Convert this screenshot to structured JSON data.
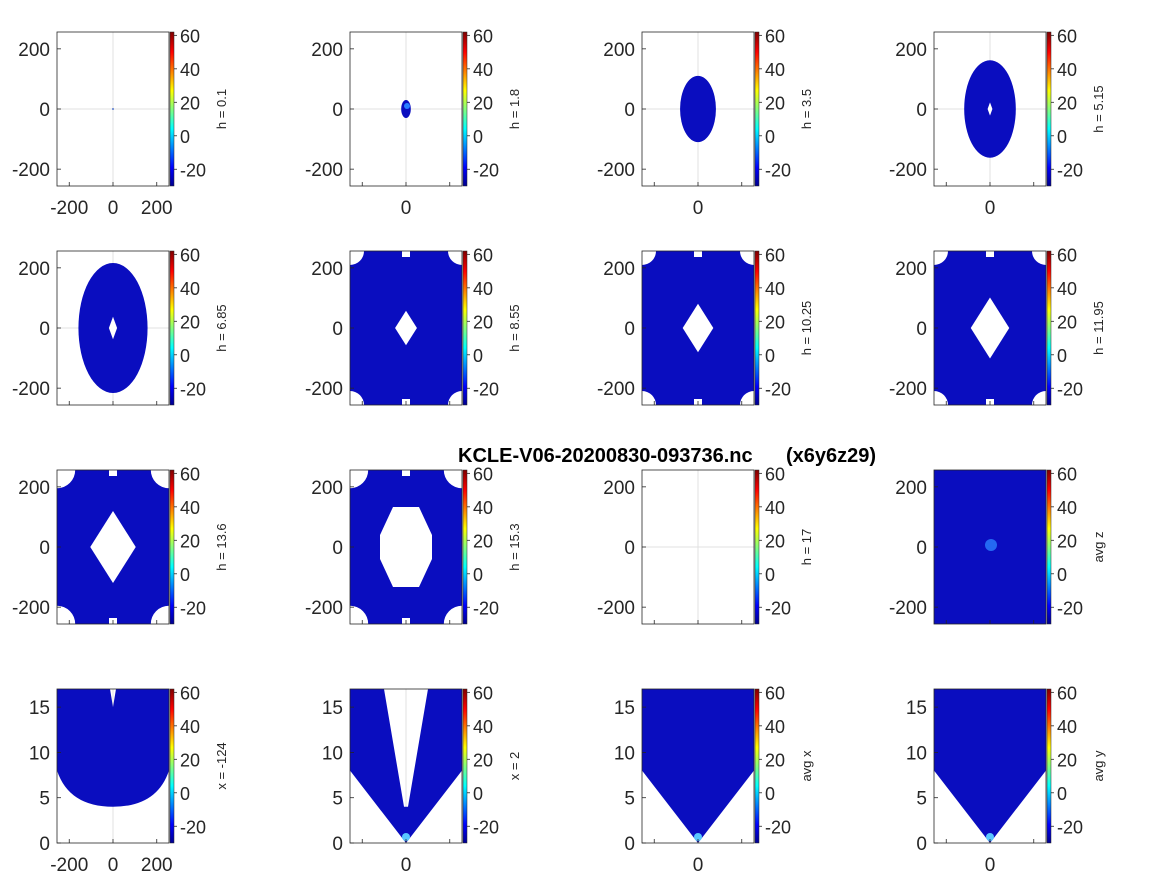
{
  "figure_title": "KCLE-V06-20200830-093736.nc      (x6y6z29)",
  "colors": {
    "field": "#0a0dbf",
    "field_light": "#2a7fff",
    "axis": "#262626",
    "grid": "#e0e0e0"
  },
  "colorbar": {
    "ticks": [
      "60",
      "40",
      "20",
      "0",
      "-20"
    ],
    "tick_values": [
      60,
      40,
      20,
      0,
      -20
    ],
    "range": [
      -30,
      62
    ],
    "colormap": "jet"
  },
  "chart_data": [
    {
      "type": "heatmap",
      "label": "h = 0.1",
      "xticks": [
        "-200",
        "0",
        "200"
      ],
      "yticks": [
        "200",
        "0",
        "-200"
      ],
      "xlim": [
        -256,
        256
      ],
      "ylim": [
        -256,
        256
      ],
      "shape": "empty",
      "dot": true
    },
    {
      "type": "heatmap",
      "label": "h = 1.8",
      "xticks": [
        "0"
      ],
      "yticks": [
        "200",
        "0",
        "-200"
      ],
      "xlim": [
        -256,
        256
      ],
      "ylim": [
        -256,
        256
      ],
      "shape": "ellipse",
      "rx": 22,
      "ry": 30,
      "hole": 0
    },
    {
      "type": "heatmap",
      "label": "h = 3.5",
      "xticks": [
        "0"
      ],
      "yticks": [
        "200",
        "0",
        "-200"
      ],
      "xlim": [
        -256,
        256
      ],
      "ylim": [
        -256,
        256
      ],
      "shape": "ellipse",
      "rx": 82,
      "ry": 110,
      "hole": 0
    },
    {
      "type": "heatmap",
      "label": "h = 5.15",
      "xticks": [
        "0"
      ],
      "yticks": [
        "200",
        "0",
        "-200"
      ],
      "xlim": [
        -256,
        256
      ],
      "ylim": [
        -256,
        256
      ],
      "shape": "ellipse",
      "rx": 118,
      "ry": 162,
      "hole": 20
    },
    {
      "type": "heatmap",
      "label": "h = 6.85",
      "xticks": [],
      "yticks": [
        "200",
        "0",
        "-200"
      ],
      "xlim": [
        -256,
        256
      ],
      "ylim": [
        -256,
        256
      ],
      "shape": "ellipse",
      "rx": 158,
      "ry": 216,
      "hole": 34
    },
    {
      "type": "heatmap",
      "label": "h = 8.55",
      "xticks": [],
      "yticks": [
        "200",
        "0",
        "-200"
      ],
      "xlim": [
        -256,
        256
      ],
      "ylim": [
        -256,
        256
      ],
      "shape": "rings",
      "rx": 256,
      "ry": 256,
      "hole": 50
    },
    {
      "type": "heatmap",
      "label": "h = 10.25",
      "xticks": [],
      "yticks": [
        "200",
        "0",
        "-200"
      ],
      "xlim": [
        -256,
        256
      ],
      "ylim": [
        -256,
        256
      ],
      "shape": "rings",
      "rx": 256,
      "ry": 256,
      "hole": 70
    },
    {
      "type": "heatmap",
      "label": "h = 11.95",
      "xticks": [],
      "yticks": [
        "200",
        "0",
        "-200"
      ],
      "xlim": [
        -256,
        256
      ],
      "ylim": [
        -256,
        256
      ],
      "shape": "rings",
      "rx": 256,
      "ry": 256,
      "hole": 88
    },
    {
      "type": "heatmap",
      "label": "h = 13.6",
      "xticks": [],
      "yticks": [
        "200",
        "0",
        "-200"
      ],
      "xlim": [
        -256,
        256
      ],
      "ylim": [
        -256,
        256
      ],
      "shape": "rings",
      "rx": 256,
      "ry": 256,
      "hole": 104
    },
    {
      "type": "heatmap",
      "label": "h = 15.3",
      "xticks": [],
      "yticks": [
        "200",
        "0",
        "-200"
      ],
      "xlim": [
        -256,
        256
      ],
      "ylim": [
        -256,
        256
      ],
      "shape": "rings",
      "rx": 256,
      "ry": 256,
      "hole": 130
    },
    {
      "type": "heatmap",
      "label": "h = 17",
      "xticks": [],
      "yticks": [
        "200",
        "0",
        "-200"
      ],
      "xlim": [
        -256,
        256
      ],
      "ylim": [
        -256,
        256
      ],
      "shape": "empty",
      "dot": false
    },
    {
      "type": "heatmap",
      "label": "avg z",
      "xticks": [],
      "yticks": [
        "200",
        "0",
        "-200"
      ],
      "xlim": [
        -256,
        256
      ],
      "ylim": [
        -256,
        256
      ],
      "shape": "fill",
      "center_spot": true
    },
    {
      "type": "heatmap",
      "label": "x = -124",
      "xticks": [
        "-200",
        "0",
        "200"
      ],
      "yticks": [
        "15",
        "10",
        "5",
        "0"
      ],
      "xlim": [
        -256,
        256
      ],
      "ylim": [
        0,
        17
      ],
      "shape": "heart"
    },
    {
      "type": "heatmap",
      "label": "x = 2",
      "xticks": [
        "0"
      ],
      "yticks": [
        "15",
        "10",
        "5",
        "0"
      ],
      "xlim": [
        -256,
        256
      ],
      "ylim": [
        0,
        17
      ],
      "shape": "split-vee"
    },
    {
      "type": "heatmap",
      "label": "avg x",
      "xticks": [
        "0"
      ],
      "yticks": [
        "15",
        "10",
        "5",
        "0"
      ],
      "xlim": [
        -256,
        256
      ],
      "ylim": [
        0,
        17
      ],
      "shape": "vee"
    },
    {
      "type": "heatmap",
      "label": "avg y",
      "xticks": [
        "0"
      ],
      "yticks": [
        "15",
        "10",
        "5",
        "0"
      ],
      "xlim": [
        -256,
        256
      ],
      "ylim": [
        0,
        17
      ],
      "shape": "vee"
    }
  ]
}
